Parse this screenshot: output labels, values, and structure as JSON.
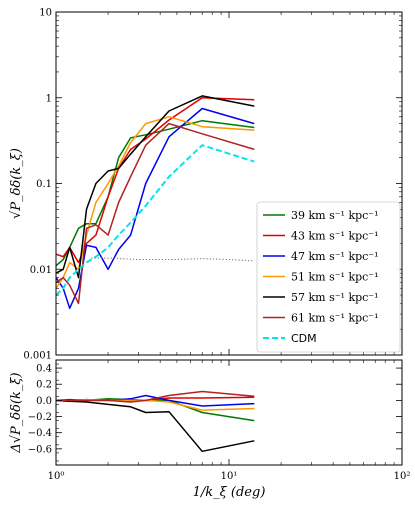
{
  "chart_data": [
    {
      "type": "line",
      "xscale": "log",
      "yscale": "log",
      "xlim": [
        1,
        100
      ],
      "ylim": [
        0.001,
        10
      ],
      "ylabel": "√P_δδ(k_ξ)",
      "x_ticks": [
        1,
        10,
        100
      ],
      "x_tick_labels": [
        "",
        "",
        ""
      ],
      "y_ticks": [
        0.001,
        0.01,
        0.1,
        1,
        10
      ],
      "y_tick_labels": [
        "0.001",
        "0.01",
        "0.1",
        "1",
        "10"
      ],
      "legend_position": "lower-right",
      "series": [
        {
          "name": "39 km s⁻¹ kpc⁻¹",
          "color": "#007a00",
          "style": "solid",
          "x": [
            1.0,
            1.1,
            1.2,
            1.35,
            1.5,
            1.7,
            2.0,
            2.3,
            2.7,
            3.3,
            4.5,
            7.0,
            14.0
          ],
          "y": [
            0.011,
            0.013,
            0.018,
            0.03,
            0.034,
            0.034,
            0.07,
            0.2,
            0.34,
            0.37,
            0.43,
            0.54,
            0.45
          ]
        },
        {
          "name": "43 km s⁻¹ kpc⁻¹",
          "color": "#e00000",
          "style": "solid",
          "x": [
            1.0,
            1.1,
            1.2,
            1.35,
            1.5,
            1.7,
            2.0,
            2.3,
            2.7,
            3.3,
            4.5,
            7.0,
            14.0
          ],
          "y": [
            0.015,
            0.014,
            0.018,
            0.012,
            0.02,
            0.025,
            0.07,
            0.15,
            0.25,
            0.33,
            0.55,
            1.0,
            0.95
          ]
        },
        {
          "name": "47 km s⁻¹ kpc⁻¹",
          "color": "#0000ee",
          "style": "solid",
          "x": [
            1.0,
            1.1,
            1.2,
            1.35,
            1.5,
            1.7,
            2.0,
            2.3,
            2.7,
            3.3,
            4.5,
            7.0,
            14.0
          ],
          "y": [
            0.008,
            0.006,
            0.0035,
            0.006,
            0.019,
            0.018,
            0.01,
            0.017,
            0.025,
            0.1,
            0.35,
            0.75,
            0.5
          ]
        },
        {
          "name": "51 km s⁻¹ kpc⁻¹",
          "color": "#ff9900",
          "style": "solid",
          "x": [
            1.0,
            1.1,
            1.2,
            1.35,
            1.5,
            1.7,
            2.0,
            2.3,
            2.7,
            3.3,
            4.5,
            7.0,
            14.0
          ],
          "y": [
            0.006,
            0.008,
            0.012,
            0.01,
            0.025,
            0.06,
            0.1,
            0.16,
            0.3,
            0.5,
            0.6,
            0.46,
            0.42
          ]
        },
        {
          "name": "57 km s⁻¹ kpc⁻¹",
          "color": "#000000",
          "style": "solid",
          "x": [
            1.0,
            1.1,
            1.2,
            1.35,
            1.5,
            1.7,
            2.0,
            2.3,
            2.7,
            3.3,
            4.5,
            7.0,
            14.0
          ],
          "y": [
            0.009,
            0.01,
            0.018,
            0.008,
            0.05,
            0.1,
            0.14,
            0.15,
            0.22,
            0.35,
            0.7,
            1.05,
            0.8
          ]
        },
        {
          "name": "61 km s⁻¹ kpc⁻¹",
          "color": "#b22222",
          "style": "solid",
          "x": [
            1.0,
            1.1,
            1.2,
            1.35,
            1.5,
            1.7,
            2.0,
            2.3,
            2.7,
            3.3,
            4.5,
            7.0,
            14.0
          ],
          "y": [
            0.007,
            0.008,
            0.0065,
            0.004,
            0.03,
            0.033,
            0.025,
            0.06,
            0.12,
            0.28,
            0.5,
            0.38,
            0.25
          ]
        },
        {
          "name": "CDM",
          "color": "#00e5ee",
          "style": "dashed",
          "x": [
            1.0,
            1.1,
            1.2,
            1.35,
            1.5,
            1.7,
            2.0,
            2.3,
            2.7,
            3.3,
            4.5,
            7.0,
            14.0
          ],
          "y": [
            0.005,
            0.006,
            0.008,
            0.01,
            0.012,
            0.014,
            0.018,
            0.025,
            0.035,
            0.055,
            0.12,
            0.28,
            0.18
          ]
        },
        {
          "name": "",
          "color": "#777777",
          "style": "dotted",
          "x": [
            1.6,
            2.0,
            3.0,
            5.0,
            7.0,
            10.0,
            14.0
          ],
          "y": [
            0.0135,
            0.0135,
            0.013,
            0.013,
            0.0133,
            0.013,
            0.0125
          ]
        }
      ]
    },
    {
      "type": "line",
      "xscale": "log",
      "xlim": [
        1,
        100
      ],
      "ylim": [
        -0.8,
        0.5
      ],
      "xlabel": "1/k_ξ (deg)",
      "ylabel": "Δ√P_δδ(k_ξ)",
      "x_ticks": [
        1,
        10,
        100
      ],
      "x_tick_labels": [
        "10⁰",
        "10¹",
        "10²"
      ],
      "y_ticks": [
        -0.6,
        -0.4,
        -0.2,
        0.0,
        0.2,
        0.4
      ],
      "y_tick_labels": [
        "−0.6",
        "−0.4",
        "−0.2",
        "0.0",
        "0.2",
        "0.4"
      ],
      "series": [
        {
          "name": "39 km s⁻¹ kpc⁻¹",
          "color": "#007a00",
          "style": "solid",
          "x": [
            1.0,
            1.2,
            1.5,
            2.0,
            2.7,
            3.3,
            4.5,
            7.0,
            14.0
          ],
          "y": [
            0.0,
            -0.01,
            0.0,
            0.02,
            0.01,
            0.0,
            0.0,
            -0.15,
            -0.25
          ]
        },
        {
          "name": "43 km s⁻¹ kpc⁻¹",
          "color": "#e00000",
          "style": "solid",
          "x": [
            1.0,
            1.2,
            1.5,
            2.0,
            2.7,
            3.3,
            4.5,
            7.0,
            14.0
          ],
          "y": [
            0.0,
            0.0,
            0.01,
            0.0,
            -0.01,
            0.0,
            0.03,
            0.03,
            0.04
          ]
        },
        {
          "name": "47 km s⁻¹ kpc⁻¹",
          "color": "#0000ee",
          "style": "solid",
          "x": [
            1.0,
            1.2,
            1.5,
            2.0,
            2.7,
            3.3,
            4.5,
            7.0,
            14.0
          ],
          "y": [
            0.0,
            0.01,
            0.0,
            0.0,
            0.02,
            0.06,
            0.0,
            -0.07,
            -0.04
          ]
        },
        {
          "name": "51 km s⁻¹ kpc⁻¹",
          "color": "#ff9900",
          "style": "solid",
          "x": [
            1.0,
            1.2,
            1.5,
            2.0,
            2.7,
            3.3,
            4.5,
            7.0,
            14.0
          ],
          "y": [
            0.0,
            0.0,
            0.01,
            0.0,
            0.0,
            0.0,
            -0.02,
            -0.12,
            -0.1
          ]
        },
        {
          "name": "57 km s⁻¹ kpc⁻¹",
          "color": "#000000",
          "style": "solid",
          "x": [
            1.0,
            1.2,
            1.5,
            2.0,
            2.7,
            3.3,
            4.5,
            7.0,
            14.0
          ],
          "y": [
            0.0,
            -0.01,
            -0.02,
            -0.05,
            -0.08,
            -0.15,
            -0.14,
            -0.63,
            -0.5
          ]
        },
        {
          "name": "61 km s⁻¹ kpc⁻¹",
          "color": "#b22222",
          "style": "solid",
          "x": [
            1.0,
            1.2,
            1.5,
            2.0,
            2.7,
            3.3,
            4.5,
            7.0,
            14.0
          ],
          "y": [
            0.0,
            0.0,
            0.0,
            0.0,
            -0.02,
            0.0,
            0.06,
            0.11,
            0.05
          ]
        }
      ]
    }
  ]
}
